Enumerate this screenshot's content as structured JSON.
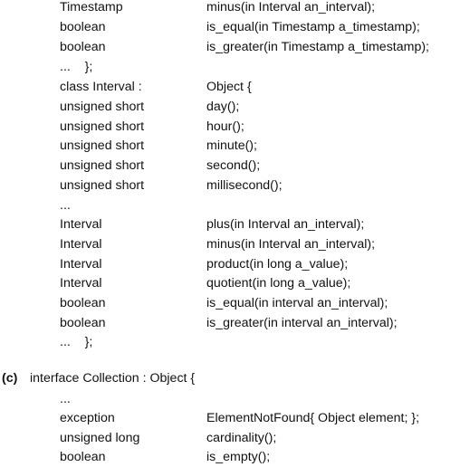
{
  "block_one": {
    "rows": [
      {
        "type": "Timestamp",
        "decl": "minus(in Interval an_interval);"
      },
      {
        "type": "boolean",
        "decl": "is_equal(in Timestamp a_timestamp);"
      },
      {
        "type": "boolean",
        "decl": "is_greater(in Timestamp a_timestamp);"
      },
      {
        "type": "...    };",
        "decl": ""
      },
      {
        "type": "class Interval :",
        "decl": "Object {"
      },
      {
        "type": "unsigned short",
        "decl": "day();"
      },
      {
        "type": "unsigned short",
        "decl": "hour();"
      },
      {
        "type": "unsigned short",
        "decl": "minute();"
      },
      {
        "type": "unsigned short",
        "decl": "second();"
      },
      {
        "type": "unsigned short",
        "decl": "millisecond();"
      },
      {
        "type": "...",
        "decl": ""
      },
      {
        "type": "Interval",
        "decl": "plus(in Interval an_interval);"
      },
      {
        "type": "Interval",
        "decl": "minus(in Interval an_interval);"
      },
      {
        "type": "Interval",
        "decl": "product(in long a_value);"
      },
      {
        "type": "Interval",
        "decl": "quotient(in long a_value);"
      },
      {
        "type": "boolean",
        "decl": "is_equal(in interval an_interval);"
      },
      {
        "type": "boolean",
        "decl": "is_greater(in interval an_interval);"
      },
      {
        "type": "...    };",
        "decl": ""
      }
    ]
  },
  "section_c": {
    "label": "(c)",
    "header": "interface Collection : Object {",
    "rows": [
      {
        "type": "...",
        "decl": ""
      },
      {
        "type": "exception",
        "decl": "ElementNotFound{ Object element; };"
      },
      {
        "type": "unsigned long",
        "decl": "cardinality();"
      },
      {
        "type": "boolean",
        "decl": "is_empty();"
      }
    ]
  }
}
